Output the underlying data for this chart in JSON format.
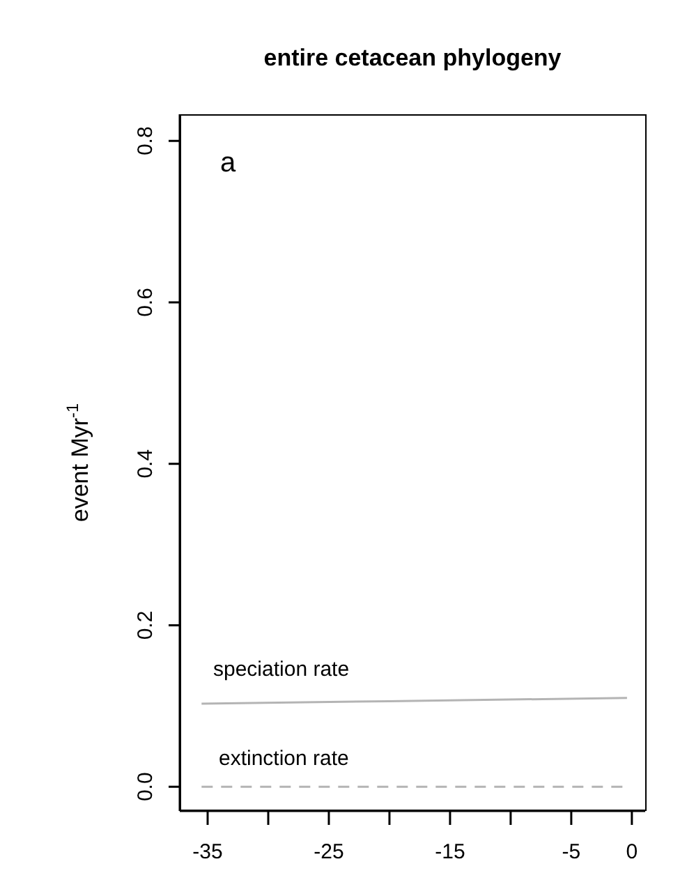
{
  "chart_data": {
    "type": "line",
    "title": "entire cetacean phylogeny",
    "ylabel": "event Myr$^{-1}$",
    "xlim": [
      -37.3,
      1.1
    ],
    "ylim": [
      -0.03,
      0.833
    ],
    "xticks": [
      -35,
      {
        "value": -30,
        "label": null
      },
      -25,
      {
        "value": -20,
        "label": null
      },
      -15,
      {
        "value": -10,
        "label": null
      },
      -5,
      0
    ],
    "yticks": [
      {
        "value": 0,
        "label": "0.0"
      },
      0.2,
      0.4,
      0.6,
      0.8
    ],
    "grid": false,
    "legend": false,
    "marker": "none",
    "series": [
      {
        "color": "#b4b4b4",
        "line_style": "solid",
        "x": [
          -35.5,
          -20,
          -0.4
        ],
        "values": [
          0.103,
          0.106,
          0.11
        ]
      },
      {
        "color": "#b4b4b4",
        "line_style": "dashed",
        "x": [
          -35.5,
          -0.4
        ],
        "values": [
          0,
          0
        ]
      }
    ],
    "annotations": [
      "a",
      "speciation rate",
      "extinction rate"
    ]
  }
}
